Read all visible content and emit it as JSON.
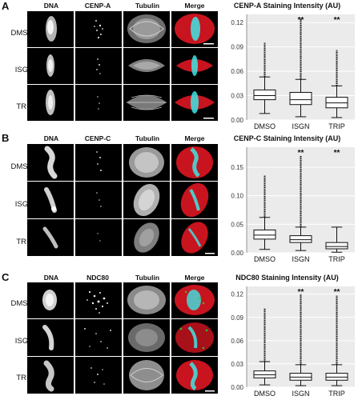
{
  "panels": [
    {
      "letter": "A",
      "headers": [
        "DNA",
        "CENP-A",
        "Tubulin",
        "Merge"
      ],
      "rows": [
        "DMSO",
        "ISGN",
        "TRIP"
      ],
      "chart_title": "CENP-A Staining Intensity (AU)"
    },
    {
      "letter": "B",
      "headers": [
        "DNA",
        "CENP-C",
        "Tubulin",
        "Merge"
      ],
      "rows": [
        "DMSO",
        "ISGN",
        "TRIP"
      ],
      "chart_title": "CENP-C Staining Intensity (AU)"
    },
    {
      "letter": "C",
      "headers": [
        "DNA",
        "NDC80",
        "Tubulin",
        "Merge"
      ],
      "rows": [
        "DMSO",
        "ISGN",
        "TRIP"
      ],
      "chart_title": "NDC80 Staining Intensity (AU)"
    }
  ],
  "colors": {
    "merge_red": "#c8141e",
    "merge_cyan": "#3ce6e6",
    "merge_green": "#28c828"
  },
  "chart_data": [
    {
      "type": "box",
      "title": "CENP-A Staining Intensity (AU)",
      "categories": [
        "DMSO",
        "ISGN",
        "TRIP"
      ],
      "yticks": [
        "0.00",
        "0.03",
        "0.06",
        "0.09",
        "0.12"
      ],
      "ylim": [
        0,
        0.13
      ],
      "significance": [
        "",
        "**",
        "**"
      ],
      "boxes": [
        {
          "q1": 0.025,
          "median": 0.03,
          "q3": 0.037,
          "wlow": 0.008,
          "whigh": 0.053,
          "outlier_top": 0.095
        },
        {
          "q1": 0.019,
          "median": 0.025,
          "q3": 0.034,
          "wlow": 0.004,
          "whigh": 0.05,
          "outlier_top": 0.125
        },
        {
          "q1": 0.015,
          "median": 0.021,
          "q3": 0.028,
          "wlow": 0.003,
          "whigh": 0.042,
          "outlier_top": 0.086
        }
      ]
    },
    {
      "type": "box",
      "title": "CENP-C Staining Intensity (AU)",
      "categories": [
        "DMSO",
        "ISGN",
        "TRIP"
      ],
      "yticks": [
        "0.00",
        "0.05",
        "0.10",
        "0.15"
      ],
      "ylim": [
        0,
        0.185
      ],
      "significance": [
        "",
        "**",
        "**"
      ],
      "boxes": [
        {
          "q1": 0.024,
          "median": 0.031,
          "q3": 0.04,
          "wlow": 0.006,
          "whigh": 0.062,
          "outlier_top": 0.135
        },
        {
          "q1": 0.018,
          "median": 0.023,
          "q3": 0.03,
          "wlow": 0.004,
          "whigh": 0.045,
          "outlier_top": 0.17
        },
        {
          "q1": 0.007,
          "median": 0.011,
          "q3": 0.018,
          "wlow": 0.001,
          "whigh": 0.045,
          "outlier_top": 0.045
        }
      ]
    },
    {
      "type": "box",
      "title": "NDC80 Staining Intensity (AU)",
      "categories": [
        "DMSO",
        "ISGN",
        "TRIP"
      ],
      "yticks": [
        "0.00",
        "0.03",
        "0.06",
        "0.09",
        "0.12"
      ],
      "ylim": [
        0,
        0.13
      ],
      "significance": [
        "",
        "**",
        "**"
      ],
      "boxes": [
        {
          "q1": 0.012,
          "median": 0.016,
          "q3": 0.021,
          "wlow": 0.003,
          "whigh": 0.033,
          "outlier_top": 0.102
        },
        {
          "q1": 0.009,
          "median": 0.013,
          "q3": 0.018,
          "wlow": 0.002,
          "whigh": 0.029,
          "outlier_top": 0.12
        },
        {
          "q1": 0.009,
          "median": 0.013,
          "q3": 0.018,
          "wlow": 0.002,
          "whigh": 0.029,
          "outlier_top": 0.118
        }
      ]
    }
  ]
}
